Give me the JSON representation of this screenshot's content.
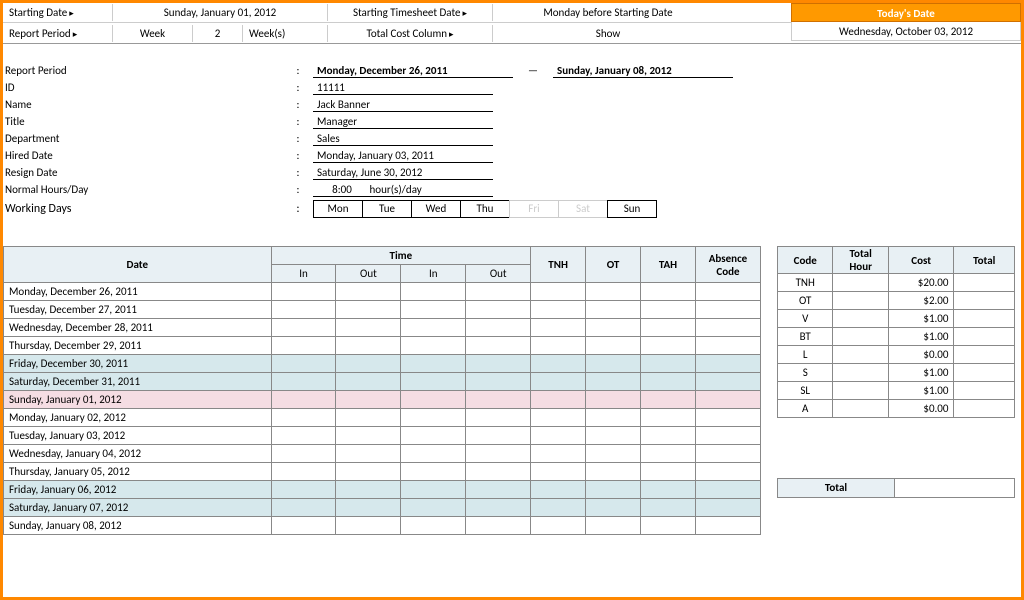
{
  "header": {
    "row1": {
      "starting_date_lbl": "Starting Date",
      "starting_date_val": "Sunday, January 01, 2012",
      "starting_ts_lbl": "Starting Timesheet Date",
      "starting_ts_val": "Monday before Starting Date"
    },
    "row2": {
      "report_period_lbl": "Report Period",
      "week_lbl": "Week",
      "week_num": "2",
      "weeks_unit": "Week(s)",
      "total_cost_lbl": "Total Cost Column",
      "show_lbl": "Show"
    },
    "todays_date_hdr": "Today's Date",
    "todays_date_val": "Wednesday, October 03, 2012"
  },
  "info": {
    "report_period_lbl": "Report Period",
    "report_start": "Monday, December 26, 2011",
    "dash": "—",
    "report_end": "Sunday, January 08, 2012",
    "id_lbl": "ID",
    "id_val": "11111",
    "name_lbl": "Name",
    "name_val": "Jack Banner",
    "title_lbl": "Title",
    "title_val": "Manager",
    "dept_lbl": "Department",
    "dept_val": "Sales",
    "hired_lbl": "Hired Date",
    "hired_val": "Monday, January 03, 2011",
    "resign_lbl": "Resign Date",
    "resign_val": "Saturday, June 30, 2012",
    "hours_lbl": "Normal Hours/Day",
    "hours_val": "8:00",
    "hours_unit": "hour(s)/day",
    "wdays_lbl": "Working Days",
    "days": [
      {
        "lbl": "Mon",
        "on": true
      },
      {
        "lbl": "Tue",
        "on": true
      },
      {
        "lbl": "Wed",
        "on": true
      },
      {
        "lbl": "Thu",
        "on": true
      },
      {
        "lbl": "Fri",
        "on": false
      },
      {
        "lbl": "Sat",
        "on": false
      },
      {
        "lbl": "Sun",
        "on": true
      }
    ]
  },
  "ts": {
    "cols": {
      "date": "Date",
      "time": "Time",
      "in": "In",
      "out": "Out",
      "tnh": "TNH",
      "ot": "OT",
      "tah": "TAH",
      "abs": "Absence Code"
    },
    "rows": [
      {
        "date": "Monday, December 26, 2011",
        "cls": ""
      },
      {
        "date": "Tuesday, December 27, 2011",
        "cls": ""
      },
      {
        "date": "Wednesday, December 28, 2011",
        "cls": ""
      },
      {
        "date": "Thursday, December 29, 2011",
        "cls": ""
      },
      {
        "date": "Friday, December 30, 2011",
        "cls": "shade"
      },
      {
        "date": "Saturday, December 31, 2011",
        "cls": "shade"
      },
      {
        "date": "Sunday, January 01, 2012",
        "cls": "shade-pink"
      },
      {
        "date": "Monday, January 02, 2012",
        "cls": ""
      },
      {
        "date": "Tuesday, January 03, 2012",
        "cls": ""
      },
      {
        "date": "Wednesday, January 04, 2012",
        "cls": ""
      },
      {
        "date": "Thursday, January 05, 2012",
        "cls": ""
      },
      {
        "date": "Friday, January 06, 2012",
        "cls": "shade"
      },
      {
        "date": "Saturday, January 07, 2012",
        "cls": "shade"
      },
      {
        "date": "Sunday, January 08, 2012",
        "cls": ""
      }
    ]
  },
  "cost": {
    "cols": {
      "code": "Code",
      "hour": "Total Hour",
      "cost": "Cost",
      "total": "Total"
    },
    "rows": [
      {
        "code": "TNH",
        "cost": "$20.00"
      },
      {
        "code": "OT",
        "cost": "$2.00"
      },
      {
        "code": "V",
        "cost": "$1.00"
      },
      {
        "code": "BT",
        "cost": "$1.00"
      },
      {
        "code": "L",
        "cost": "$0.00"
      },
      {
        "code": "S",
        "cost": "$1.00"
      },
      {
        "code": "SL",
        "cost": "$1.00"
      },
      {
        "code": "A",
        "cost": "$0.00"
      }
    ],
    "total_lbl": "Total"
  }
}
